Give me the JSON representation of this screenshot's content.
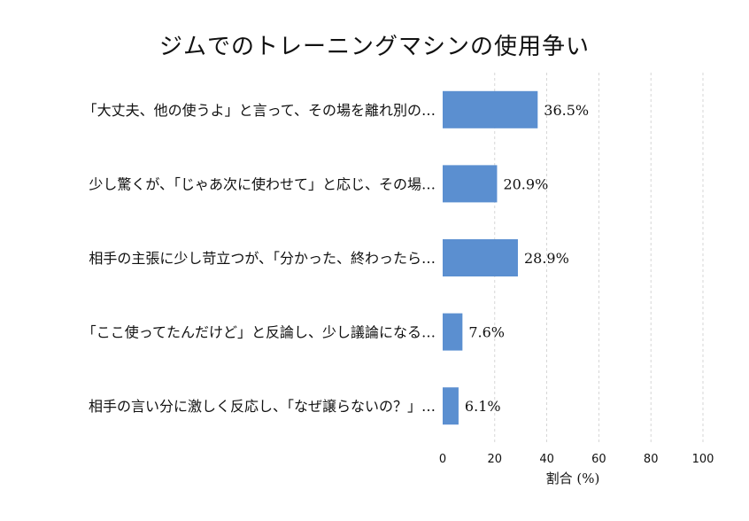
{
  "chart_data": {
    "type": "bar",
    "orientation": "horizontal",
    "title": "ジムでのトレーニングマシンの使用争い",
    "xlabel": "割合 (%)",
    "ylabel": "",
    "xlim": [
      0,
      100
    ],
    "xticks": [
      0,
      20,
      40,
      60,
      80,
      100
    ],
    "grid": "vertical dashed",
    "bar_color": "#5b8fd0",
    "categories": [
      "「大丈夫、他の使うよ」と言って、その場を離れ別の…",
      "少し驚くが、「じゃあ次に使わせて」と応じ、その場…",
      "相手の主張に少し苛立つが、「分かった、終わったら…",
      "「ここ使ってたんだけど」と反論し、少し議論になる…",
      "相手の言い分に激しく反応し、「なぜ譲らないの？」…"
    ],
    "values": [
      36.5,
      20.9,
      28.9,
      7.6,
      6.1
    ],
    "value_labels": [
      "36.5%",
      "20.9%",
      "28.9%",
      "7.6%",
      "6.1%"
    ]
  }
}
